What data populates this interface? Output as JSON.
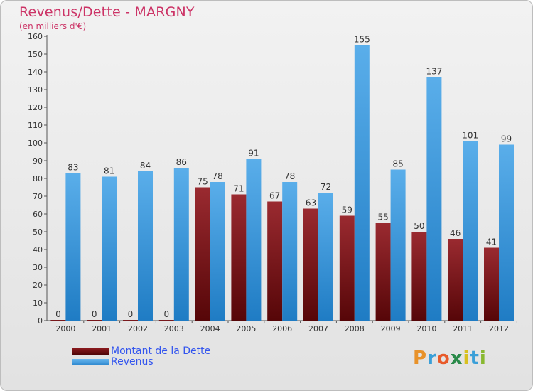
{
  "header": {
    "title": "Revenus/Dette - MARGNY",
    "subtitle": "(en milliers d'€)"
  },
  "chart_data": {
    "type": "bar",
    "categories": [
      "2000",
      "2001",
      "2002",
      "2003",
      "2004",
      "2005",
      "2006",
      "2007",
      "2008",
      "2009",
      "2010",
      "2011",
      "2012"
    ],
    "series": [
      {
        "name": "Montant de la Dette",
        "values": [
          0,
          0,
          0,
          0,
          75,
          71,
          67,
          63,
          59,
          55,
          50,
          46,
          41
        ],
        "color": "#7a1518"
      },
      {
        "name": "Revenus",
        "values": [
          83,
          81,
          84,
          86,
          78,
          91,
          78,
          72,
          155,
          85,
          137,
          101,
          99
        ],
        "color": "#3d97dd"
      }
    ],
    "ylim": [
      0,
      160
    ],
    "yticks": [
      0,
      10,
      20,
      30,
      40,
      50,
      60,
      70,
      80,
      90,
      100,
      110,
      120,
      130,
      140,
      150,
      160
    ],
    "grid": false,
    "legend_position": "bottom-left",
    "data_labels": true
  },
  "legend": {
    "items": [
      {
        "label": "Montant de la Dette",
        "color": "#6b0d0d"
      },
      {
        "label": "Revenus",
        "color": "#3d97dd"
      }
    ]
  },
  "logo": {
    "text": "Proxiti",
    "letter_colors": [
      "#e8922a",
      "#3a9fd8",
      "#e85a2a",
      "#2a8a4a",
      "#d8c020",
      "#3a9fd8",
      "#88b830"
    ]
  }
}
